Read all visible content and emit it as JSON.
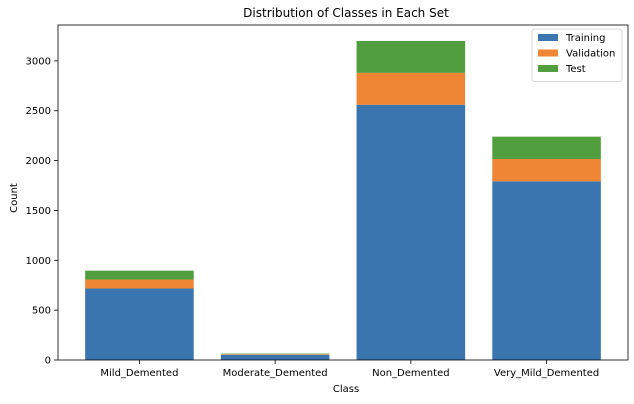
{
  "chart_data": {
    "type": "bar",
    "stacked": true,
    "title": "Distribution of Classes in Each Set",
    "xlabel": "Class",
    "ylabel": "Count",
    "ylim": [
      0,
      3360
    ],
    "yticks": [
      0,
      500,
      1000,
      1500,
      2000,
      2500,
      3000
    ],
    "categories": [
      "Mild_Demented",
      "Moderate_Demented",
      "Non_Demented",
      "Very_Mild_Demented"
    ],
    "series": [
      {
        "name": "Training",
        "color": "#3a75b0",
        "values": [
          717,
          52,
          2560,
          1792
        ]
      },
      {
        "name": "Validation",
        "color": "#ef8636",
        "values": [
          90,
          6,
          320,
          224
        ]
      },
      {
        "name": "Test",
        "color": "#519e3e",
        "values": [
          89,
          6,
          320,
          224
        ]
      }
    ],
    "legend_position": "top-right",
    "grid": false
  }
}
